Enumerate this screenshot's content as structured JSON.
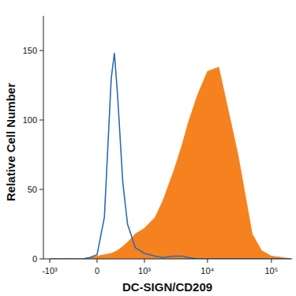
{
  "chart_data": {
    "type": "area",
    "x_label": "DC-SIGN/CD209",
    "y_label": "Relative Cell Number",
    "x": [
      -1000,
      -500,
      -200,
      -100,
      0,
      100,
      200,
      250,
      300,
      400,
      500,
      700,
      1000,
      1500,
      2000,
      3000,
      4000,
      5000,
      7000,
      10000,
      15000,
      20000,
      30000,
      50000,
      70000,
      100000,
      150000,
      200000
    ],
    "series": [
      {
        "type": "area",
        "color": "#f5821f",
        "values": [
          0,
          0,
          0,
          1,
          2,
          3,
          4,
          5,
          6,
          9,
          12,
          18,
          22,
          30,
          42,
          64,
          82,
          98,
          118,
          135,
          138,
          112,
          75,
          18,
          6,
          2,
          1,
          0
        ]
      },
      {
        "type": "line",
        "color": "#2b6cb0",
        "values": [
          0,
          0,
          0,
          1,
          3,
          30,
          130,
          148,
          120,
          55,
          25,
          8,
          4,
          2,
          1,
          2,
          2,
          1,
          0,
          0,
          0,
          0,
          0,
          0,
          0,
          0,
          0,
          0
        ]
      }
    ],
    "xlim": [
      -1270,
      210000
    ],
    "xticks": [
      {
        "value": -1000,
        "label": "-10³"
      },
      0,
      {
        "value": 1000,
        "label": "10³"
      },
      {
        "value": 10000,
        "label": "10⁴"
      },
      {
        "value": 100000,
        "label": "10⁵"
      }
    ],
    "ylim": [
      0,
      175
    ],
    "yticks": [
      0,
      50,
      100,
      150
    ],
    "grid": false
  }
}
